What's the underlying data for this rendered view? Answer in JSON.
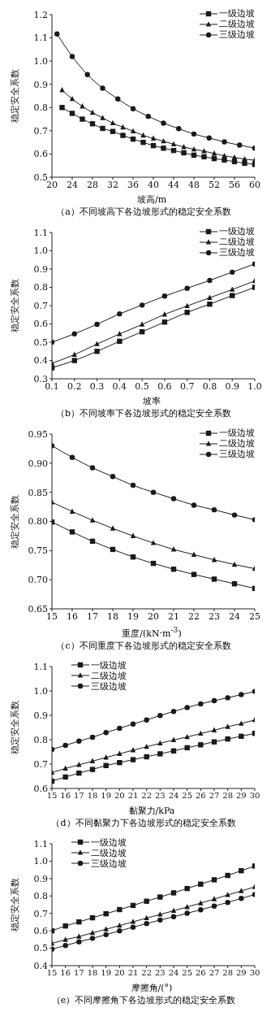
{
  "chart_data": [
    {
      "type": "line",
      "title": "（a）不同坡高下各边坡形式的稳定安全系数",
      "xlabel": "坡高/m",
      "ylabel": "稳定安全系数",
      "xlim": [
        20,
        60
      ],
      "xticks": [
        20,
        24,
        28,
        32,
        36,
        40,
        44,
        48,
        52,
        56,
        60
      ],
      "ylim": [
        0.5,
        1.2
      ],
      "yticks": [
        {
          "value": 0.5,
          "label": "0.5"
        },
        {
          "value": 0.6,
          "label": "0.6"
        },
        {
          "value": 0.7,
          "label": "0.7"
        },
        {
          "value": 0.8,
          "label": "0.8"
        },
        {
          "value": 0.9,
          "label": "0.9"
        },
        {
          "value": 1.0,
          "label": "1.0"
        },
        {
          "value": 1.1,
          "label": "1.1"
        },
        {
          "value": 1.2,
          "label": "1.2"
        }
      ],
      "legend": "top right",
      "series": [
        {
          "name": "一级边坡",
          "color": "#1a1a1a",
          "marker": "square",
          "x": [
            22,
            24,
            26,
            28,
            30,
            32,
            34,
            36,
            38,
            40,
            42,
            44,
            46,
            48,
            50,
            52,
            54,
            56,
            58,
            60
          ],
          "values": [
            0.8,
            0.775,
            0.75,
            0.73,
            0.71,
            0.697,
            0.68,
            0.664,
            0.65,
            0.636,
            0.625,
            0.615,
            0.605,
            0.595,
            0.588,
            0.58,
            0.574,
            0.567,
            0.56,
            0.555
          ]
        },
        {
          "name": "二级边坡",
          "color": "#1a1a1a",
          "marker": "triangle",
          "x": [
            22,
            24,
            26,
            28,
            30,
            32,
            34,
            36,
            38,
            40,
            42,
            44,
            46,
            48,
            50,
            52,
            54,
            56,
            58,
            60
          ],
          "values": [
            0.875,
            0.837,
            0.805,
            0.778,
            0.755,
            0.733,
            0.715,
            0.698,
            0.68,
            0.667,
            0.655,
            0.642,
            0.63,
            0.62,
            0.612,
            0.602,
            0.592,
            0.585,
            0.578,
            0.573
          ]
        },
        {
          "name": "三级边坡",
          "color": "#1a1a1a",
          "marker": "circle",
          "x": [
            21,
            24,
            27,
            30,
            33,
            36,
            39,
            42,
            45,
            48,
            51,
            54,
            57,
            60
          ],
          "values": [
            1.117,
            1.02,
            0.942,
            0.883,
            0.837,
            0.795,
            0.762,
            0.733,
            0.709,
            0.686,
            0.669,
            0.652,
            0.638,
            0.625
          ]
        }
      ]
    },
    {
      "type": "line",
      "title": "（b）不同坡率下各边坡形式的稳定安全系数",
      "xlabel": "坡率",
      "ylabel": "稳定安全系数",
      "x": [
        0.1,
        0.2,
        0.3,
        0.4,
        0.5,
        0.6,
        0.7,
        0.8,
        0.9,
        1.0
      ],
      "xlim": [
        0.1,
        1.0
      ],
      "xticks": [
        0.1,
        0.2,
        0.3,
        0.4,
        0.5,
        0.6,
        0.7,
        0.8,
        0.9,
        {
          "value": 1.0,
          "label": "1.0"
        }
      ],
      "ylim": [
        0.3,
        1.1
      ],
      "yticks": [
        {
          "value": 0.3,
          "label": "0.3"
        },
        {
          "value": 0.4,
          "label": "0.4"
        },
        {
          "value": 0.5,
          "label": "0.5"
        },
        {
          "value": 0.6,
          "label": "0.6"
        },
        {
          "value": 0.7,
          "label": "0.7"
        },
        {
          "value": 0.8,
          "label": "0.8"
        },
        {
          "value": 0.9,
          "label": "0.9"
        },
        {
          "value": 1.0,
          "label": "1.0"
        },
        {
          "value": 1.1,
          "label": "1.1"
        }
      ],
      "legend": "top right",
      "series": [
        {
          "name": "一级边坡",
          "color": "#1a1a1a",
          "marker": "square",
          "values": [
            0.36,
            0.4,
            0.45,
            0.505,
            0.557,
            0.61,
            0.663,
            0.708,
            0.755,
            0.8
          ]
        },
        {
          "name": "二级边坡",
          "color": "#1a1a1a",
          "marker": "triangle",
          "values": [
            0.385,
            0.432,
            0.49,
            0.545,
            0.597,
            0.652,
            0.698,
            0.743,
            0.788,
            0.835
          ]
        },
        {
          "name": "三级边坡",
          "color": "#1a1a1a",
          "marker": "circle",
          "values": [
            0.5,
            0.546,
            0.598,
            0.655,
            0.703,
            0.752,
            0.795,
            0.838,
            0.883,
            0.928
          ]
        }
      ]
    },
    {
      "type": "line",
      "title": "（c）不同重度下各边坡形式的稳定安全系数",
      "xlabel": "重度/(kN·m$^{-3}$)",
      "ylabel": "稳定安全系数",
      "x": [
        15,
        16,
        17,
        18,
        19,
        20,
        21,
        22,
        23,
        24,
        25
      ],
      "xlim": [
        15,
        25
      ],
      "xticks": [
        15,
        16,
        17,
        18,
        19,
        20,
        21,
        22,
        23,
        24,
        25
      ],
      "ylim": [
        0.65,
        0.95
      ],
      "yticks": [
        {
          "value": 0.65,
          "label": "0.65"
        },
        {
          "value": 0.7,
          "label": "0.70"
        },
        {
          "value": 0.75,
          "label": "0.75"
        },
        {
          "value": 0.8,
          "label": "0.80"
        },
        {
          "value": 0.85,
          "label": "0.85"
        },
        {
          "value": 0.9,
          "label": "0.90"
        },
        {
          "value": 0.95,
          "label": "0.95"
        }
      ],
      "legend": "top right",
      "series": [
        {
          "name": "一级边坡",
          "color": "#1a1a1a",
          "marker": "square",
          "values": [
            0.799,
            0.782,
            0.766,
            0.752,
            0.739,
            0.728,
            0.718,
            0.709,
            0.701,
            0.693,
            0.685
          ]
        },
        {
          "name": "二级边坡",
          "color": "#1a1a1a",
          "marker": "triangle",
          "values": [
            0.833,
            0.817,
            0.802,
            0.788,
            0.775,
            0.763,
            0.752,
            0.743,
            0.734,
            0.726,
            0.719
          ]
        },
        {
          "name": "三级边坡",
          "color": "#1a1a1a",
          "marker": "circle",
          "values": [
            0.93,
            0.91,
            0.892,
            0.877,
            0.862,
            0.85,
            0.839,
            0.828,
            0.82,
            0.811,
            0.803
          ]
        }
      ]
    },
    {
      "type": "line",
      "title": "（d）不同黏聚力下各边坡形式的稳定安全系数",
      "xlabel": "黏聚力/kPa",
      "ylabel": "稳定安全系数",
      "x": [
        15,
        16,
        17,
        18,
        19,
        20,
        21,
        22,
        23,
        24,
        25,
        26,
        27,
        28,
        29,
        30
      ],
      "xlim": [
        15,
        30
      ],
      "xticks": [
        15,
        16,
        17,
        18,
        19,
        20,
        21,
        22,
        23,
        24,
        25,
        26,
        27,
        28,
        29,
        30
      ],
      "ylim": [
        0.6,
        1.1
      ],
      "yticks": [
        {
          "value": 0.6,
          "label": "0.6"
        },
        {
          "value": 0.7,
          "label": "0.7"
        },
        {
          "value": 0.8,
          "label": "0.8"
        },
        {
          "value": 0.9,
          "label": "0.9"
        },
        {
          "value": 1.0,
          "label": "1.0"
        },
        {
          "value": 1.1,
          "label": "1.1"
        }
      ],
      "legend": "top left",
      "series": [
        {
          "name": "一级边坡",
          "color": "#1a1a1a",
          "marker": "square",
          "values": [
            0.63,
            0.647,
            0.663,
            0.678,
            0.694,
            0.706,
            0.718,
            0.73,
            0.742,
            0.754,
            0.767,
            0.779,
            0.791,
            0.803,
            0.814,
            0.826
          ]
        },
        {
          "name": "二级边坡",
          "color": "#1a1a1a",
          "marker": "triangle",
          "values": [
            0.665,
            0.682,
            0.697,
            0.712,
            0.727,
            0.742,
            0.757,
            0.771,
            0.785,
            0.799,
            0.811,
            0.825,
            0.839,
            0.853,
            0.866,
            0.881
          ]
        },
        {
          "name": "三级边坡",
          "color": "#1a1a1a",
          "marker": "circle",
          "values": [
            0.76,
            0.777,
            0.794,
            0.81,
            0.829,
            0.847,
            0.864,
            0.881,
            0.899,
            0.916,
            0.932,
            0.947,
            0.96,
            0.972,
            0.985,
            0.998
          ]
        }
      ]
    },
    {
      "type": "line",
      "title": "（e）不同摩擦角下各边坡形式的稳定安全系数",
      "xlabel": "摩擦角/(°)",
      "ylabel": "稳定安全系数",
      "x": [
        15,
        16,
        17,
        18,
        19,
        20,
        21,
        22,
        23,
        24,
        25,
        26,
        27,
        28,
        29,
        30
      ],
      "xlim": [
        15,
        30
      ],
      "xticks": [
        15,
        16,
        17,
        18,
        19,
        20,
        21,
        22,
        23,
        24,
        25,
        26,
        27,
        28,
        29,
        30
      ],
      "ylim": [
        0.4,
        1.1
      ],
      "yticks": [
        {
          "value": 0.4,
          "label": "0.4"
        },
        {
          "value": 0.5,
          "label": "0.5"
        },
        {
          "value": 0.6,
          "label": "0.6"
        },
        {
          "value": 0.7,
          "label": "0.7"
        },
        {
          "value": 0.8,
          "label": "0.8"
        },
        {
          "value": 0.9,
          "label": "0.9"
        },
        {
          "value": 1.0,
          "label": "1.0"
        },
        {
          "value": 1.1,
          "label": "1.1"
        }
      ],
      "legend": "top left",
      "series": [
        {
          "name": "一级边坡",
          "color": "#1a1a1a",
          "marker": "square",
          "values": [
            0.6,
            0.628,
            0.651,
            0.675,
            0.698,
            0.722,
            0.746,
            0.77,
            0.794,
            0.818,
            0.843,
            0.868,
            0.893,
            0.918,
            0.945,
            0.972
          ]
        },
        {
          "name": "二级边坡",
          "color": "#1a1a1a",
          "marker": "triangle",
          "values": [
            0.528,
            0.549,
            0.567,
            0.588,
            0.609,
            0.63,
            0.652,
            0.673,
            0.694,
            0.715,
            0.737,
            0.759,
            0.782,
            0.806,
            0.829,
            0.852
          ]
        },
        {
          "name": "三级边坡",
          "color": "#1a1a1a",
          "marker": "circle",
          "values": [
            0.495,
            0.516,
            0.537,
            0.557,
            0.578,
            0.6,
            0.621,
            0.642,
            0.662,
            0.681,
            0.701,
            0.721,
            0.742,
            0.763,
            0.786,
            0.808
          ]
        }
      ]
    }
  ]
}
